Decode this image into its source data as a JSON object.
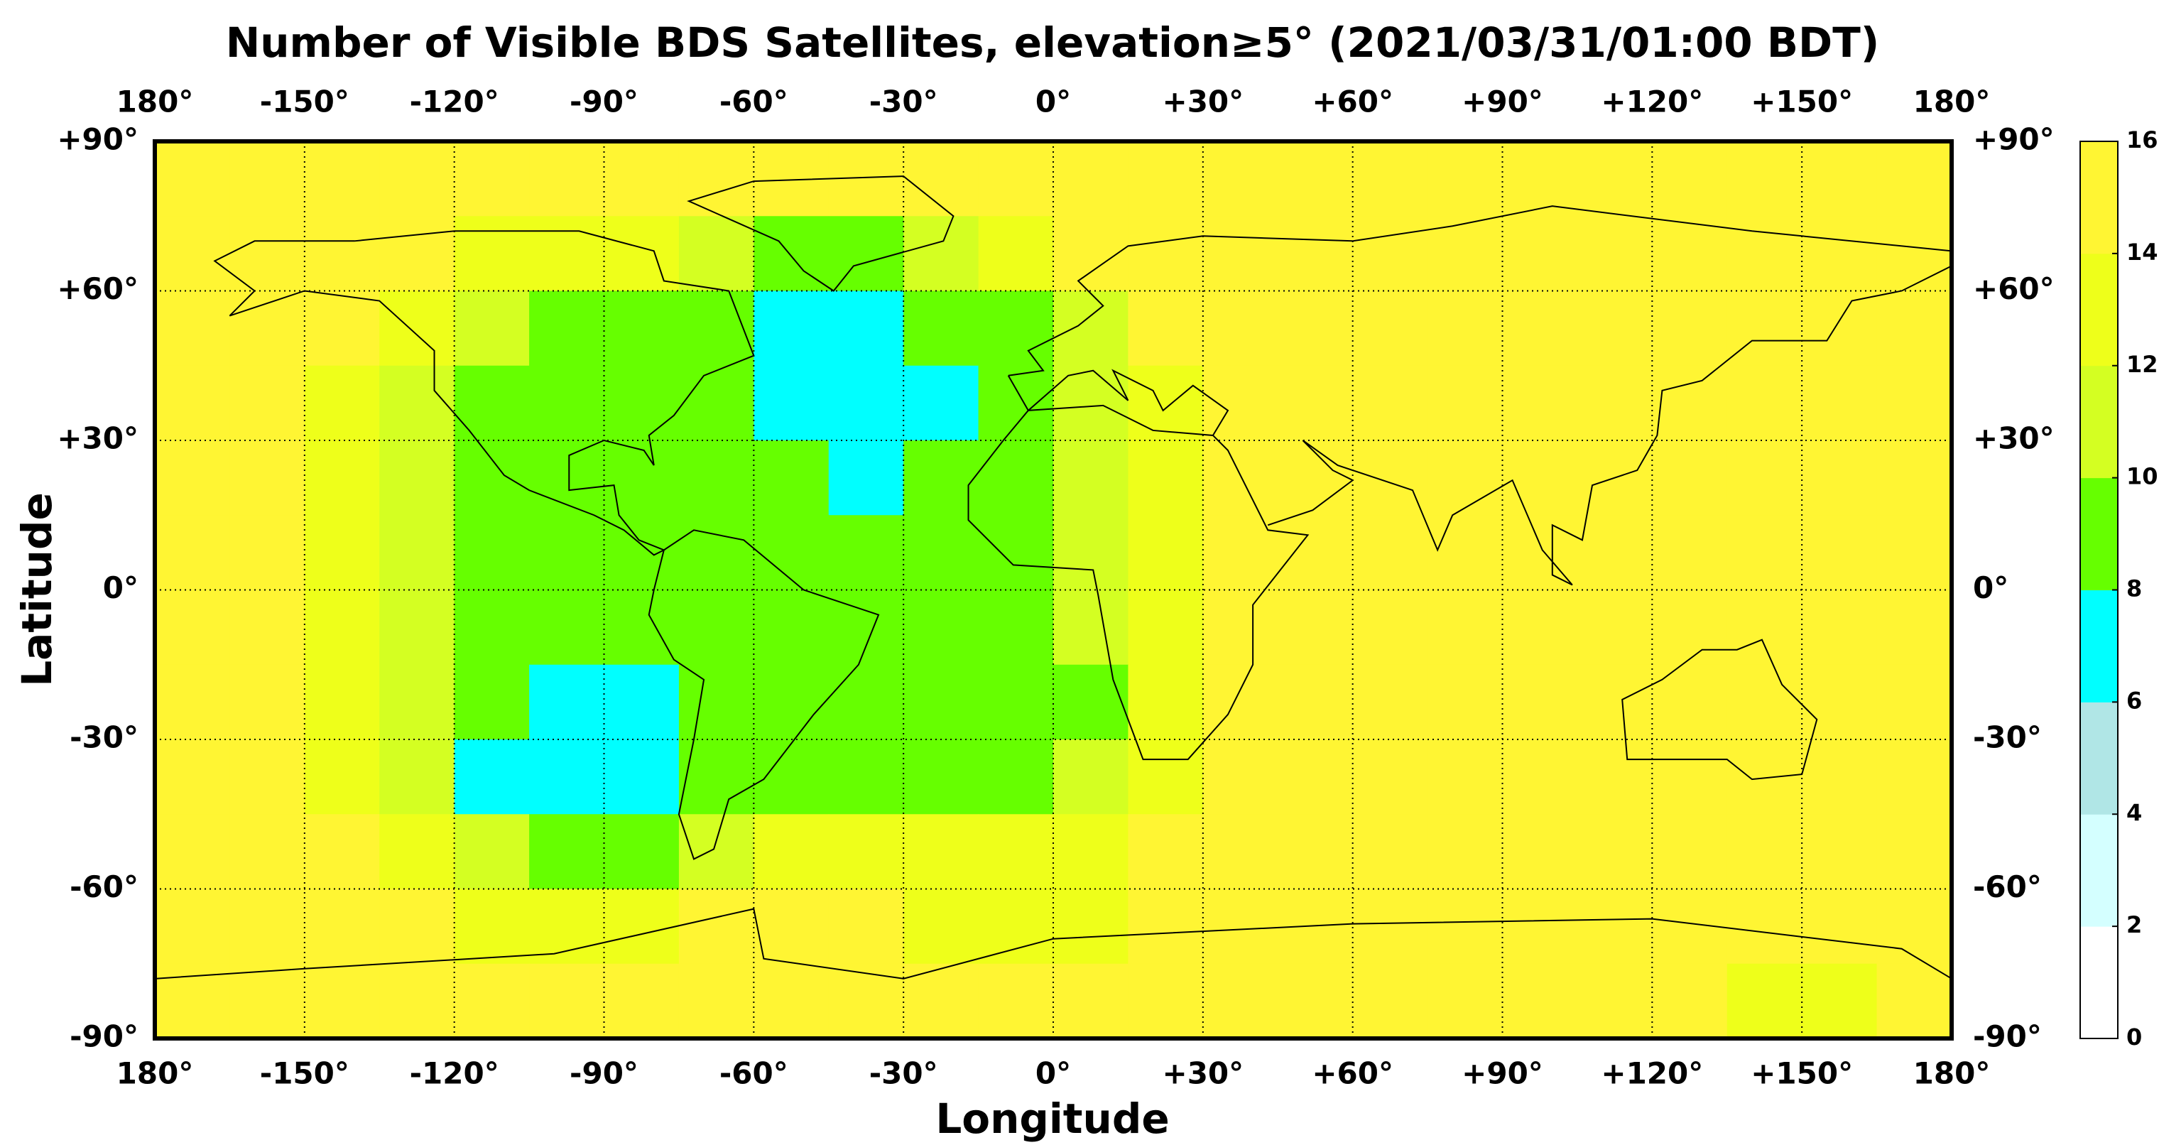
{
  "chart_data": {
    "type": "heatmap",
    "title": "Number of Visible BDS Satellites, elevation≥5° (2021/03/31/01:00 BDT)",
    "x_label": "Longitude",
    "y_label": "Latitude",
    "xlim": [
      -180,
      180
    ],
    "ylim": [
      -90,
      90
    ],
    "xticks": [
      {
        "value": -180,
        "label": "180°"
      },
      {
        "value": -150,
        "label": "-150°"
      },
      {
        "value": -120,
        "label": "-120°"
      },
      {
        "value": -90,
        "label": "-90°"
      },
      {
        "value": -60,
        "label": "-60°"
      },
      {
        "value": -30,
        "label": "-30°"
      },
      {
        "value": 0,
        "label": "0°"
      },
      {
        "value": 30,
        "label": "+30°"
      },
      {
        "value": 60,
        "label": "+60°"
      },
      {
        "value": 90,
        "label": "+90°"
      },
      {
        "value": 120,
        "label": "+120°"
      },
      {
        "value": 150,
        "label": "+150°"
      },
      {
        "value": 180,
        "label": "180°"
      }
    ],
    "yticks": [
      {
        "value": 90,
        "label": "+90°"
      },
      {
        "value": 60,
        "label": "+60°"
      },
      {
        "value": 30,
        "label": "+30°"
      },
      {
        "value": 0,
        "label": "0°"
      },
      {
        "value": -30,
        "label": "-30°"
      },
      {
        "value": -60,
        "label": "-60°"
      },
      {
        "value": -90,
        "label": "-90°"
      }
    ],
    "grid": true,
    "x_bins": [
      -180,
      -165,
      -150,
      -135,
      -120,
      -105,
      -90,
      -75,
      -60,
      -45,
      -30,
      -15,
      0,
      15,
      30,
      45,
      60,
      75,
      90,
      105,
      120,
      135,
      150,
      165,
      180
    ],
    "y_bins": [
      90,
      75,
      60,
      45,
      30,
      15,
      0,
      -15,
      -30,
      -45,
      -60,
      -75,
      -90
    ],
    "values": [
      [
        15,
        15,
        15,
        15,
        15,
        15,
        15,
        15,
        15,
        15,
        15,
        15,
        15,
        15,
        15,
        15,
        15,
        15,
        15,
        15,
        15,
        15,
        15,
        15
      ],
      [
        15,
        15,
        15,
        15,
        13,
        13,
        13,
        11,
        9,
        9,
        11,
        13,
        15,
        15,
        15,
        15,
        15,
        15,
        15,
        15,
        15,
        15,
        15,
        15
      ],
      [
        15,
        15,
        15,
        13,
        11,
        9,
        9,
        9,
        7,
        7,
        9,
        9,
        11,
        15,
        15,
        15,
        15,
        15,
        15,
        15,
        15,
        15,
        15,
        15
      ],
      [
        15,
        15,
        13,
        11,
        9,
        9,
        9,
        9,
        7,
        7,
        7,
        9,
        11,
        13,
        15,
        15,
        15,
        15,
        15,
        15,
        15,
        15,
        15,
        15
      ],
      [
        15,
        15,
        13,
        11,
        9,
        9,
        9,
        9,
        9,
        7,
        9,
        9,
        11,
        13,
        15,
        15,
        15,
        15,
        15,
        15,
        15,
        15,
        15,
        15
      ],
      [
        15,
        15,
        13,
        11,
        9,
        9,
        9,
        9,
        9,
        9,
        9,
        9,
        11,
        13,
        15,
        15,
        15,
        15,
        15,
        15,
        15,
        15,
        15,
        15
      ],
      [
        15,
        15,
        13,
        11,
        9,
        9,
        9,
        9,
        9,
        9,
        9,
        9,
        11,
        13,
        15,
        15,
        15,
        15,
        15,
        15,
        15,
        15,
        15,
        15
      ],
      [
        15,
        15,
        13,
        11,
        9,
        7,
        7,
        9,
        9,
        9,
        9,
        9,
        9,
        13,
        15,
        15,
        15,
        15,
        15,
        15,
        15,
        15,
        15,
        15
      ],
      [
        15,
        15,
        13,
        11,
        7,
        7,
        7,
        9,
        9,
        9,
        9,
        9,
        11,
        13,
        15,
        15,
        15,
        15,
        15,
        15,
        15,
        15,
        15,
        15
      ],
      [
        15,
        15,
        15,
        13,
        11,
        9,
        9,
        11,
        13,
        13,
        13,
        13,
        13,
        15,
        15,
        15,
        15,
        15,
        15,
        15,
        15,
        15,
        15,
        15
      ],
      [
        15,
        15,
        15,
        15,
        13,
        13,
        13,
        15,
        15,
        15,
        13,
        13,
        13,
        15,
        15,
        15,
        15,
        15,
        15,
        15,
        15,
        15,
        15,
        15
      ],
      [
        15,
        15,
        15,
        15,
        15,
        15,
        15,
        15,
        15,
        15,
        15,
        15,
        15,
        15,
        15,
        15,
        15,
        15,
        15,
        15,
        15,
        13,
        13,
        15
      ]
    ],
    "colorbar": {
      "ticks": [
        0,
        2,
        4,
        6,
        8,
        10,
        12,
        14,
        16
      ],
      "colors": [
        "#ffffff",
        "#d4ffff",
        "#b0e6e6",
        "#00ffff",
        "#66ff00",
        "#d4ff22",
        "#eeff1a",
        "#fff533"
      ]
    }
  }
}
